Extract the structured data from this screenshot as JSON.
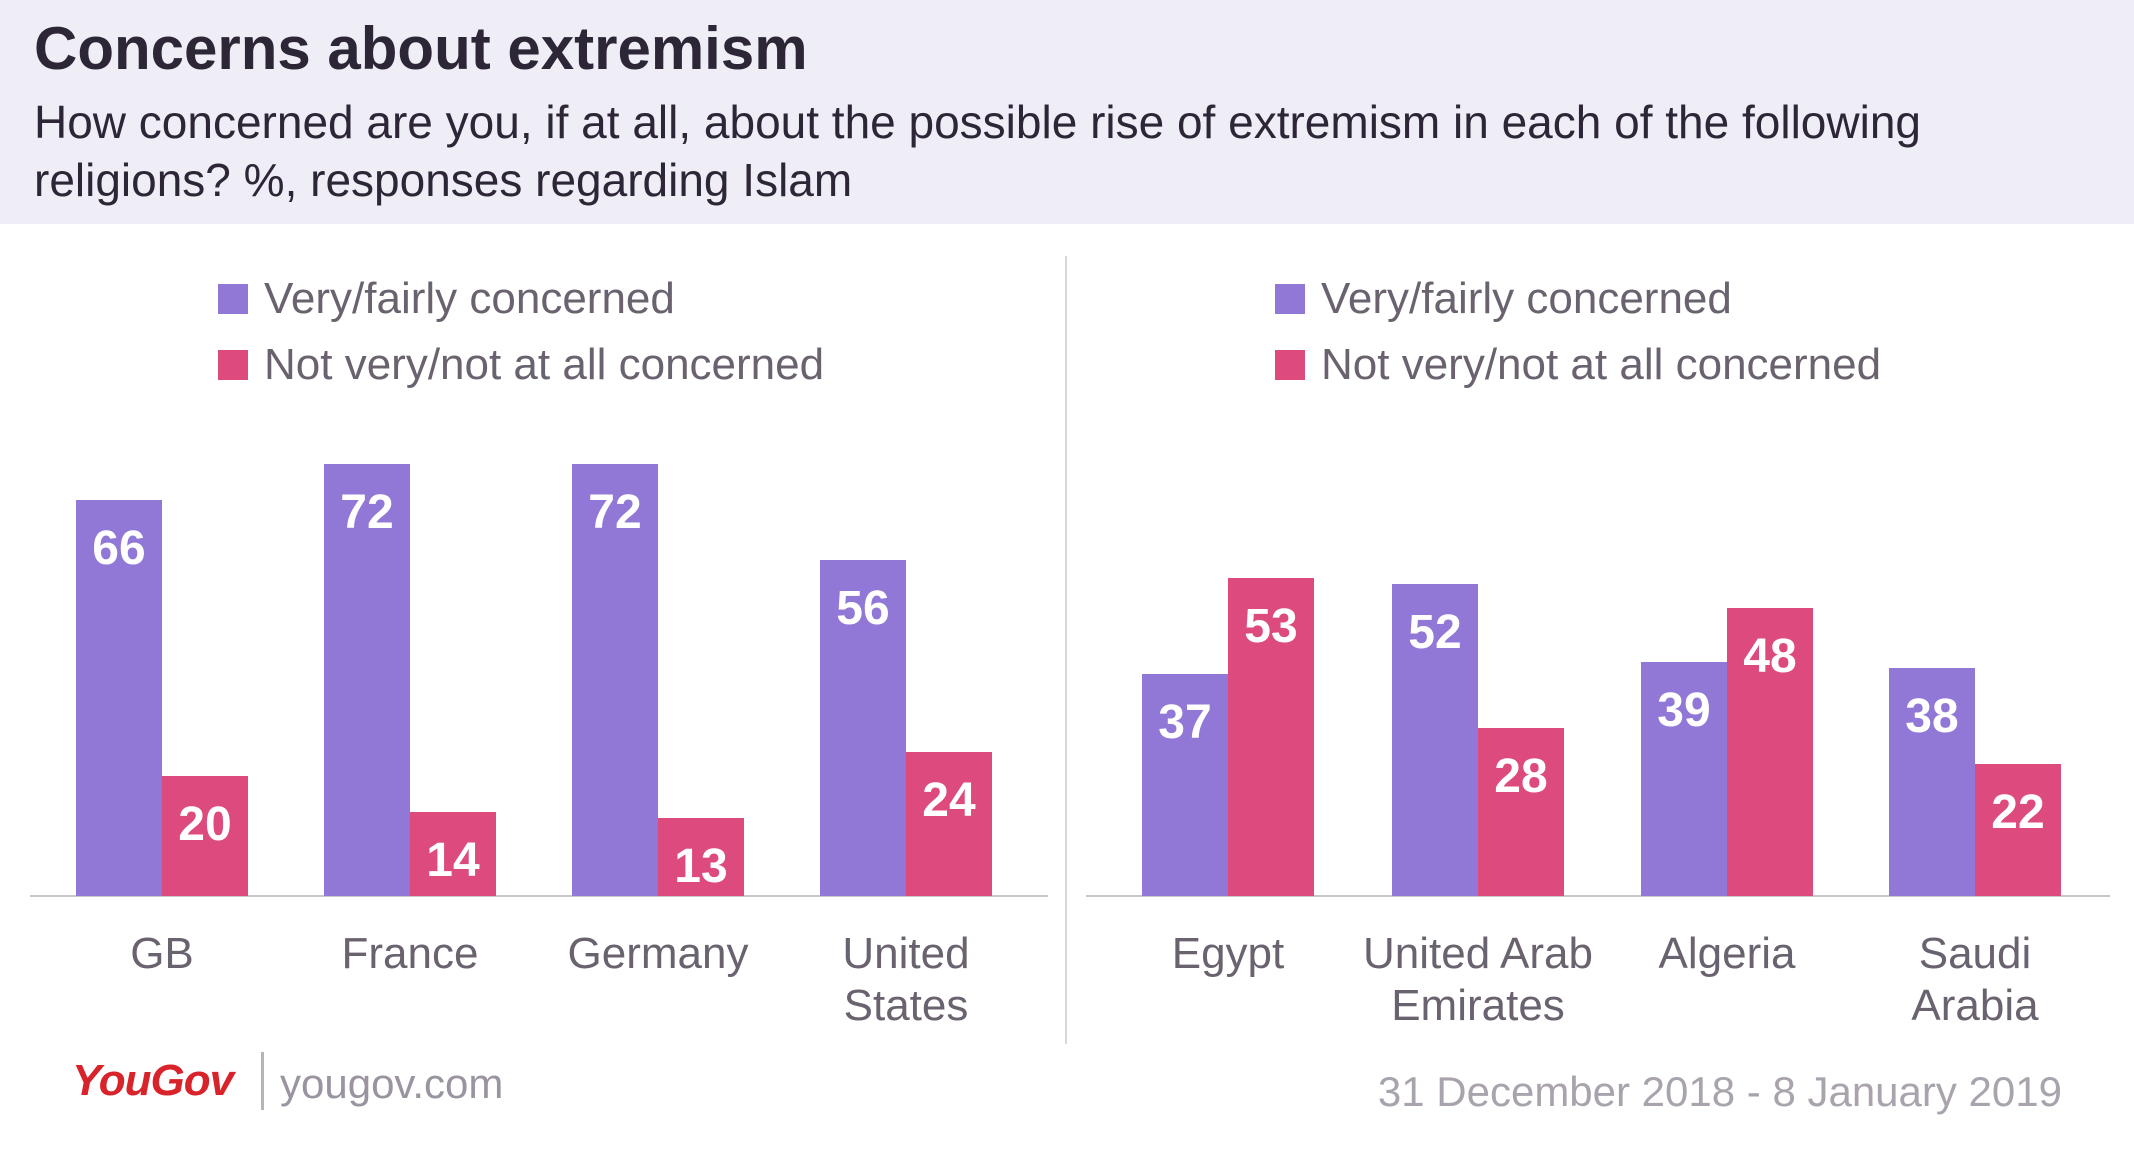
{
  "title": "Concerns about extremism",
  "subtitle": "How concerned are you, if at all, about the possible rise of extremism in each of the following religions? %, responses regarding Islam",
  "footer": {
    "logo_text": "YouGov",
    "url": "yougov.com",
    "date": "31 December 2018 - 8 January 2019"
  },
  "colors": {
    "concerned": "#9178d7",
    "not_concerned": "#dd4a7e",
    "header_bg": "#efedf6"
  },
  "chart_data": [
    {
      "type": "bar",
      "categories": [
        [
          "GB"
        ],
        [
          "France"
        ],
        [
          "Germany"
        ],
        [
          "United",
          "States"
        ]
      ],
      "series": [
        {
          "name": "Very/fairly concerned",
          "values": [
            66,
            72,
            72,
            56
          ]
        },
        {
          "name": "Not very/not at all concerned",
          "values": [
            20,
            14,
            13,
            24
          ]
        }
      ],
      "legend_position": "top-left"
    },
    {
      "type": "bar",
      "categories": [
        [
          "Egypt"
        ],
        [
          "United Arab",
          "Emirates"
        ],
        [
          "Algeria"
        ],
        [
          "Saudi",
          "Arabia"
        ]
      ],
      "series": [
        {
          "name": "Very/fairly concerned",
          "values": [
            37,
            52,
            39,
            38
          ]
        },
        {
          "name": "Not very/not at all concerned",
          "values": [
            53,
            28,
            48,
            22
          ]
        }
      ],
      "legend_position": "top-left"
    }
  ]
}
